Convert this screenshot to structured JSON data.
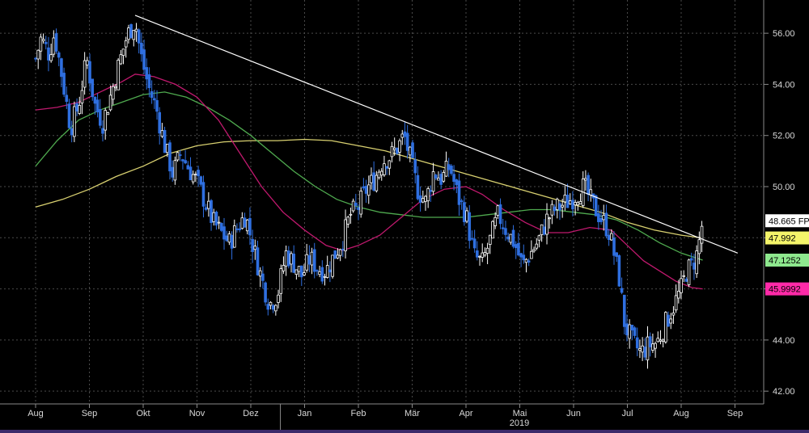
{
  "chart_data": {
    "type": "candlestick",
    "ylim": [
      41.5,
      57.3
    ],
    "y_ticks": [
      42.0,
      44.0,
      46.0,
      48.0,
      50.0,
      52.0,
      54.0,
      56.0
    ],
    "y_tick_labels": [
      "42.00",
      "44.00",
      "46.00",
      "48.00",
      "50.00",
      "52.00",
      "54.00",
      "56.00"
    ],
    "months": [
      "Aug",
      "Sep",
      "Okt",
      "Nov",
      "Dez",
      "Jan",
      "Feb",
      "Mär",
      "Apr",
      "Mai",
      "Jun",
      "Jul",
      "Aug",
      "Sep"
    ],
    "year_label": "2019",
    "grid": true,
    "last_value_labels": [
      {
        "text": "48.665 FP",
        "value": 48.665,
        "bg": "#ffffff",
        "fg": "#000000",
        "series": "price"
      },
      {
        "text": "47.992",
        "value": 47.992,
        "bg": "#f4f46a",
        "fg": "#000000",
        "series": "ma_yellow"
      },
      {
        "text": "47.1252",
        "value": 47.1252,
        "bg": "#8ee88e",
        "fg": "#000000",
        "series": "ma_green"
      },
      {
        "text": "45.9992",
        "value": 45.9992,
        "bg": "#ff2aa8",
        "fg": "#000000",
        "series": "ma_magenta"
      }
    ],
    "trendline": {
      "from": {
        "month_index": 1.85,
        "value": 56.7
      },
      "to": {
        "month_index": 13.05,
        "value": 47.4
      }
    },
    "close_path": [
      [
        0.0,
        55.0
      ],
      [
        0.1,
        55.8
      ],
      [
        0.25,
        55.2
      ],
      [
        0.35,
        56.0
      ],
      [
        0.5,
        54.2
      ],
      [
        0.65,
        52.3
      ],
      [
        0.8,
        53.2
      ],
      [
        0.95,
        55.0
      ],
      [
        1.1,
        53.2
      ],
      [
        1.25,
        52.5
      ],
      [
        1.4,
        53.6
      ],
      [
        1.55,
        54.8
      ],
      [
        1.7,
        55.9
      ],
      [
        1.85,
        56.5
      ],
      [
        1.95,
        55.2
      ],
      [
        2.1,
        53.9
      ],
      [
        2.25,
        53.0
      ],
      [
        2.4,
        51.6
      ],
      [
        2.55,
        50.5
      ],
      [
        2.7,
        51.3
      ],
      [
        2.85,
        50.7
      ],
      [
        3.0,
        50.2
      ],
      [
        3.15,
        49.4
      ],
      [
        3.3,
        48.6
      ],
      [
        3.45,
        48.2
      ],
      [
        3.6,
        47.8
      ],
      [
        3.75,
        48.4
      ],
      [
        3.9,
        48.9
      ],
      [
        4.05,
        47.6
      ],
      [
        4.2,
        46.4
      ],
      [
        4.35,
        45.4
      ],
      [
        4.5,
        45.8
      ],
      [
        4.65,
        47.4
      ],
      [
        4.8,
        47.0
      ],
      [
        4.95,
        46.5
      ],
      [
        5.1,
        47.2
      ],
      [
        5.25,
        46.8
      ],
      [
        5.4,
        46.7
      ],
      [
        5.55,
        47.3
      ],
      [
        5.7,
        47.9
      ],
      [
        5.85,
        48.9
      ],
      [
        6.0,
        49.2
      ],
      [
        6.15,
        49.9
      ],
      [
        6.3,
        50.3
      ],
      [
        6.45,
        51.0
      ],
      [
        6.6,
        51.2
      ],
      [
        6.75,
        51.6
      ],
      [
        6.85,
        52.0
      ],
      [
        6.95,
        51.2
      ],
      [
        7.1,
        49.9
      ],
      [
        7.25,
        49.4
      ],
      [
        7.4,
        50.6
      ],
      [
        7.55,
        50.3
      ],
      [
        7.7,
        50.8
      ],
      [
        7.85,
        49.6
      ],
      [
        8.0,
        48.9
      ],
      [
        8.15,
        47.3
      ],
      [
        8.3,
        47.0
      ],
      [
        8.45,
        47.9
      ],
      [
        8.6,
        48.9
      ],
      [
        8.75,
        48.3
      ],
      [
        8.9,
        47.8
      ],
      [
        9.05,
        46.9
      ],
      [
        9.2,
        47.4
      ],
      [
        9.35,
        47.9
      ],
      [
        9.5,
        48.7
      ],
      [
        9.65,
        49.1
      ],
      [
        9.8,
        49.3
      ],
      [
        9.95,
        49.5
      ],
      [
        10.1,
        49.8
      ],
      [
        10.2,
        50.0
      ],
      [
        10.35,
        49.3
      ],
      [
        10.5,
        48.8
      ],
      [
        10.65,
        48.3
      ],
      [
        10.75,
        47.4
      ],
      [
        10.85,
        46.4
      ],
      [
        10.95,
        44.6
      ],
      [
        11.1,
        43.9
      ],
      [
        11.25,
        43.5
      ],
      [
        11.4,
        43.8
      ],
      [
        11.55,
        43.9
      ],
      [
        11.7,
        44.6
      ],
      [
        11.85,
        45.3
      ],
      [
        12.0,
        46.0
      ],
      [
        12.1,
        46.7
      ],
      [
        12.2,
        46.9
      ],
      [
        12.3,
        47.4
      ],
      [
        12.4,
        48.665
      ]
    ],
    "ma_magenta": [
      [
        0.0,
        53.0
      ],
      [
        0.4,
        53.1
      ],
      [
        0.8,
        53.3
      ],
      [
        1.2,
        53.7
      ],
      [
        1.6,
        54.1
      ],
      [
        1.85,
        54.4
      ],
      [
        2.2,
        54.3
      ],
      [
        2.6,
        54.0
      ],
      [
        3.0,
        53.5
      ],
      [
        3.4,
        52.6
      ],
      [
        3.8,
        51.3
      ],
      [
        4.2,
        50.0
      ],
      [
        4.6,
        49.0
      ],
      [
        5.0,
        48.3
      ],
      [
        5.4,
        47.7
      ],
      [
        5.7,
        47.5
      ],
      [
        6.0,
        47.7
      ],
      [
        6.4,
        48.1
      ],
      [
        6.8,
        48.8
      ],
      [
        7.2,
        49.5
      ],
      [
        7.6,
        49.9
      ],
      [
        8.0,
        50.0
      ],
      [
        8.3,
        49.7
      ],
      [
        8.7,
        49.1
      ],
      [
        9.1,
        48.6
      ],
      [
        9.5,
        48.2
      ],
      [
        9.9,
        48.2
      ],
      [
        10.3,
        48.4
      ],
      [
        10.7,
        48.3
      ],
      [
        11.0,
        47.7
      ],
      [
        11.3,
        47.1
      ],
      [
        11.6,
        46.7
      ],
      [
        11.9,
        46.3
      ],
      [
        12.2,
        46.05
      ],
      [
        12.4,
        45.9992
      ]
    ],
    "ma_green": [
      [
        0.0,
        50.8
      ],
      [
        0.4,
        51.8
      ],
      [
        0.8,
        52.6
      ],
      [
        1.2,
        53.0
      ],
      [
        1.6,
        53.3
      ],
      [
        2.0,
        53.6
      ],
      [
        2.4,
        53.7
      ],
      [
        2.8,
        53.5
      ],
      [
        3.2,
        53.1
      ],
      [
        3.6,
        52.6
      ],
      [
        4.0,
        52.0
      ],
      [
        4.4,
        51.3
      ],
      [
        4.8,
        50.6
      ],
      [
        5.2,
        50.0
      ],
      [
        5.6,
        49.5
      ],
      [
        6.0,
        49.2
      ],
      [
        6.4,
        49.0
      ],
      [
        6.8,
        48.9
      ],
      [
        7.2,
        48.8
      ],
      [
        7.6,
        48.8
      ],
      [
        8.0,
        48.8
      ],
      [
        8.4,
        48.9
      ],
      [
        8.8,
        49.0
      ],
      [
        9.2,
        49.1
      ],
      [
        9.6,
        49.1
      ],
      [
        10.0,
        49.0
      ],
      [
        10.4,
        48.9
      ],
      [
        10.8,
        48.7
      ],
      [
        11.2,
        48.3
      ],
      [
        11.6,
        47.8
      ],
      [
        12.0,
        47.4
      ],
      [
        12.4,
        47.1252
      ]
    ],
    "ma_yellow": [
      [
        0.0,
        49.2
      ],
      [
        0.5,
        49.5
      ],
      [
        1.0,
        49.9
      ],
      [
        1.5,
        50.4
      ],
      [
        2.0,
        50.8
      ],
      [
        2.5,
        51.3
      ],
      [
        3.0,
        51.6
      ],
      [
        3.5,
        51.75
      ],
      [
        4.0,
        51.8
      ],
      [
        4.5,
        51.8
      ],
      [
        5.0,
        51.85
      ],
      [
        5.5,
        51.8
      ],
      [
        6.0,
        51.6
      ],
      [
        6.5,
        51.4
      ],
      [
        7.0,
        51.1
      ],
      [
        7.5,
        50.8
      ],
      [
        8.0,
        50.5
      ],
      [
        8.5,
        50.2
      ],
      [
        9.0,
        49.9
      ],
      [
        9.5,
        49.6
      ],
      [
        10.0,
        49.3
      ],
      [
        10.5,
        49.0
      ],
      [
        11.0,
        48.6
      ],
      [
        11.5,
        48.3
      ],
      [
        12.0,
        48.1
      ],
      [
        12.4,
        47.992
      ]
    ],
    "colors": {
      "up_candle": "#ffffff",
      "down_candle": "#2f6fe0",
      "trendline": "#ffffff",
      "ma_magenta": "#c0196e",
      "ma_green": "#4faa4f",
      "ma_yellow": "#d8d070",
      "grid": "#4a4a4a",
      "axis_text": "#d8d8d8"
    }
  }
}
